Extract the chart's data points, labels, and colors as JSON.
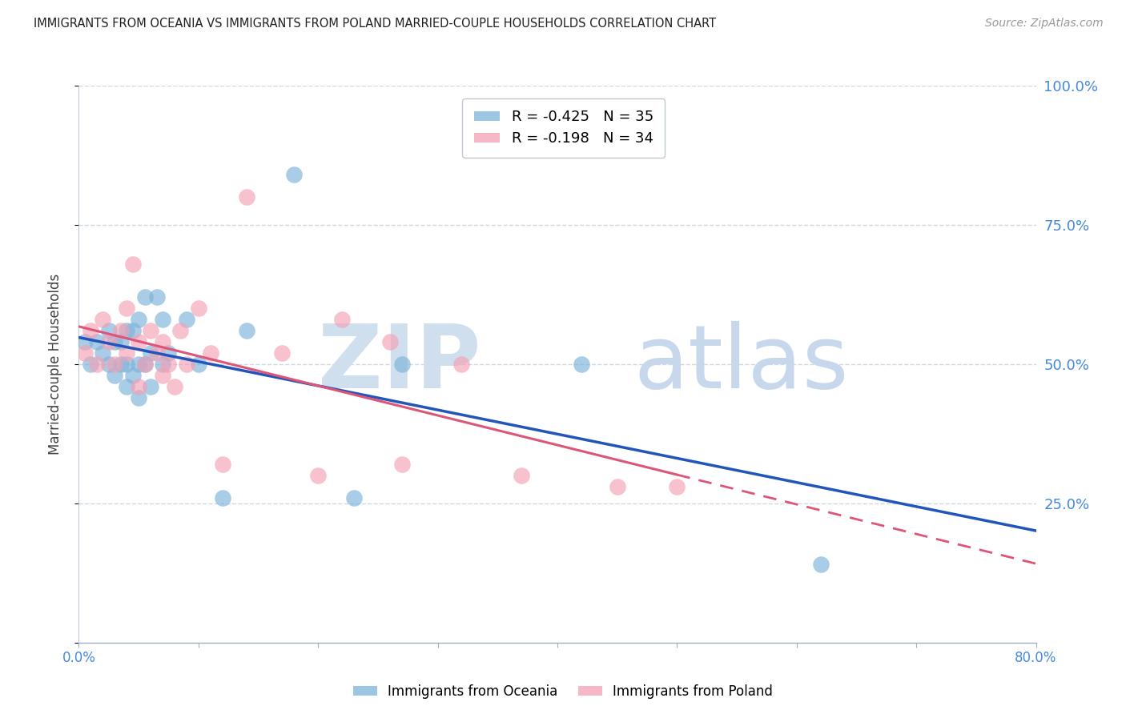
{
  "title": "IMMIGRANTS FROM OCEANIA VS IMMIGRANTS FROM POLAND MARRIED-COUPLE HOUSEHOLDS CORRELATION CHART",
  "source": "Source: ZipAtlas.com",
  "ylabel_left": "Married-couple Households",
  "legend_label_blue": "Immigrants from Oceania",
  "legend_label_pink": "Immigrants from Poland",
  "R_blue": -0.425,
  "N_blue": 35,
  "R_pink": -0.198,
  "N_pink": 34,
  "xlim": [
    0.0,
    0.8
  ],
  "ylim": [
    0.0,
    1.0
  ],
  "yticks_right": [
    0.25,
    0.5,
    0.75,
    1.0
  ],
  "yticks_grid": [
    0.25,
    0.5,
    0.75,
    1.0
  ],
  "color_blue": "#7BB3D9",
  "color_pink": "#F4A0B5",
  "color_line_blue": "#2255BB",
  "color_line_pink": "#DD5577",
  "watermark_zip_color": "#D0DFEE",
  "watermark_atlas_color": "#C8D8EC",
  "blue_x": [
    0.005,
    0.01,
    0.015,
    0.02,
    0.025,
    0.025,
    0.03,
    0.03,
    0.035,
    0.035,
    0.04,
    0.04,
    0.04,
    0.045,
    0.045,
    0.05,
    0.05,
    0.05,
    0.055,
    0.055,
    0.06,
    0.06,
    0.065,
    0.07,
    0.07,
    0.075,
    0.09,
    0.1,
    0.12,
    0.14,
    0.18,
    0.23,
    0.27,
    0.42,
    0.62
  ],
  "blue_y": [
    0.54,
    0.5,
    0.54,
    0.52,
    0.5,
    0.56,
    0.48,
    0.54,
    0.5,
    0.54,
    0.46,
    0.5,
    0.56,
    0.48,
    0.56,
    0.44,
    0.5,
    0.58,
    0.5,
    0.62,
    0.46,
    0.52,
    0.62,
    0.5,
    0.58,
    0.52,
    0.58,
    0.5,
    0.26,
    0.56,
    0.84,
    0.26,
    0.5,
    0.5,
    0.14
  ],
  "pink_x": [
    0.005,
    0.01,
    0.015,
    0.02,
    0.025,
    0.03,
    0.035,
    0.04,
    0.04,
    0.045,
    0.05,
    0.05,
    0.055,
    0.06,
    0.065,
    0.07,
    0.07,
    0.075,
    0.08,
    0.085,
    0.09,
    0.1,
    0.11,
    0.12,
    0.14,
    0.17,
    0.2,
    0.22,
    0.26,
    0.27,
    0.32,
    0.37,
    0.45,
    0.5
  ],
  "pink_y": [
    0.52,
    0.56,
    0.5,
    0.58,
    0.54,
    0.5,
    0.56,
    0.52,
    0.6,
    0.68,
    0.46,
    0.54,
    0.5,
    0.56,
    0.52,
    0.48,
    0.54,
    0.5,
    0.46,
    0.56,
    0.5,
    0.6,
    0.52,
    0.32,
    0.8,
    0.52,
    0.3,
    0.58,
    0.54,
    0.32,
    0.5,
    0.3,
    0.28,
    0.28
  ],
  "background_color": "#FFFFFF",
  "grid_color": "#C8D4E0",
  "title_color": "#202020",
  "ylabel_color": "#404040",
  "right_tick_color": "#4488DD",
  "xtick_color": "#4488DD",
  "line_blue_x_start": 0.0,
  "line_blue_x_end": 0.8,
  "line_pink_x_start": 0.0,
  "line_pink_x_end": 0.8
}
